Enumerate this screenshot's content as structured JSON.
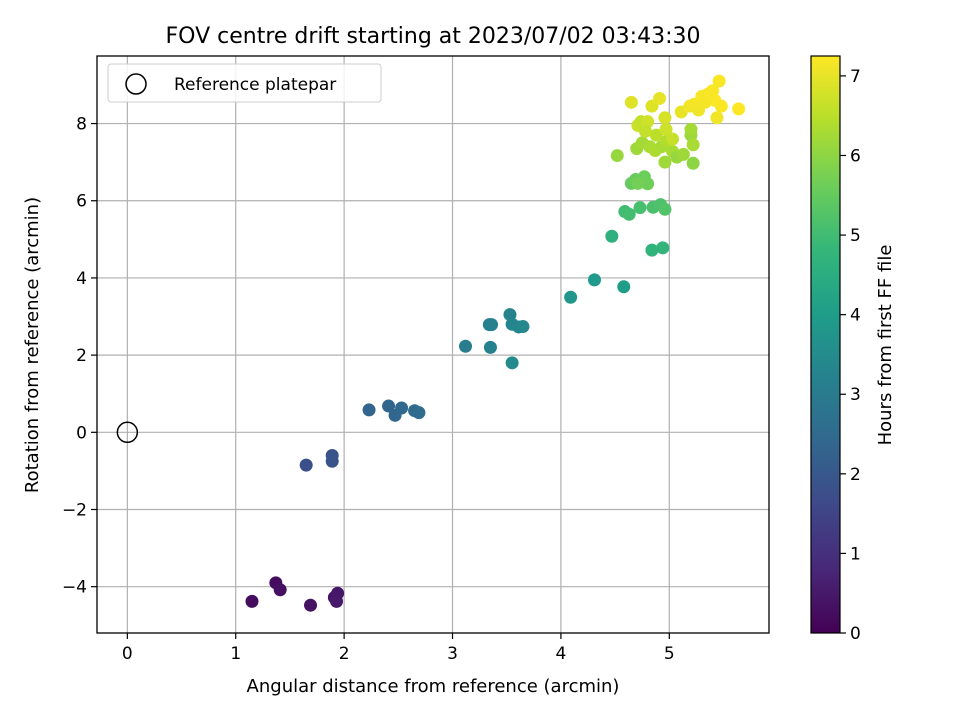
{
  "chart_data": {
    "type": "scatter",
    "title": "FOV centre drift starting at 2023/07/02 03:43:30",
    "xlabel": "Angular distance from reference (arcmin)",
    "ylabel": "Rotation from reference (arcmin)",
    "xlim": [
      -0.28,
      5.92
    ],
    "ylim": [
      -5.2,
      9.75
    ],
    "xticks": [
      0,
      1,
      2,
      3,
      4,
      5
    ],
    "xtick_labels": [
      "0",
      "1",
      "2",
      "3",
      "4",
      "5"
    ],
    "yticks": [
      -4,
      -2,
      0,
      2,
      4,
      6,
      8
    ],
    "ytick_labels": [
      "−4",
      "−2",
      "0",
      "2",
      "4",
      "6",
      "8"
    ],
    "grid": true,
    "legend": {
      "placement": "top-left",
      "entries": [
        "Reference platepar"
      ]
    },
    "colorbar": {
      "label": "Hours from first FF file",
      "colormap": "viridis",
      "range": [
        0,
        7.25
      ],
      "ticks": [
        0,
        1,
        2,
        3,
        4,
        5,
        6,
        7
      ],
      "tick_labels": [
        "0",
        "1",
        "2",
        "3",
        "4",
        "5",
        "6",
        "7"
      ],
      "colors": [
        "#440154",
        "#482878",
        "#3e4989",
        "#31688e",
        "#26828e",
        "#1f9e89",
        "#35b779",
        "#6ece58",
        "#b5de2b",
        "#fde725"
      ]
    },
    "reference_point": {
      "name": "Reference platepar",
      "x": 0,
      "y": 0
    },
    "points": [
      {
        "x": 1.15,
        "y": -4.38,
        "t": 0.2
      },
      {
        "x": 1.37,
        "y": -3.9,
        "t": 0.25
      },
      {
        "x": 1.41,
        "y": -4.08,
        "t": 0.3
      },
      {
        "x": 1.69,
        "y": -4.48,
        "t": 0.35
      },
      {
        "x": 1.91,
        "y": -4.28,
        "t": 0.4
      },
      {
        "x": 1.94,
        "y": -4.17,
        "t": 0.45
      },
      {
        "x": 1.93,
        "y": -4.38,
        "t": 0.5
      },
      {
        "x": 1.65,
        "y": -0.85,
        "t": 1.8
      },
      {
        "x": 1.89,
        "y": -0.6,
        "t": 1.85
      },
      {
        "x": 1.89,
        "y": -0.75,
        "t": 1.9
      },
      {
        "x": 2.23,
        "y": 0.58,
        "t": 2.3
      },
      {
        "x": 2.41,
        "y": 0.68,
        "t": 2.35
      },
      {
        "x": 2.47,
        "y": 0.44,
        "t": 2.4
      },
      {
        "x": 2.53,
        "y": 0.63,
        "t": 2.45
      },
      {
        "x": 2.65,
        "y": 0.56,
        "t": 2.5
      },
      {
        "x": 2.69,
        "y": 0.51,
        "t": 2.55
      },
      {
        "x": 3.12,
        "y": 2.23,
        "t": 3.05
      },
      {
        "x": 3.34,
        "y": 2.79,
        "t": 3.1
      },
      {
        "x": 3.36,
        "y": 2.79,
        "t": 3.15
      },
      {
        "x": 3.35,
        "y": 2.2,
        "t": 3.2
      },
      {
        "x": 3.53,
        "y": 3.05,
        "t": 3.25
      },
      {
        "x": 3.55,
        "y": 2.8,
        "t": 3.3
      },
      {
        "x": 3.61,
        "y": 2.73,
        "t": 3.35
      },
      {
        "x": 3.65,
        "y": 2.74,
        "t": 3.4
      },
      {
        "x": 3.55,
        "y": 1.8,
        "t": 3.45
      },
      {
        "x": 4.09,
        "y": 3.5,
        "t": 3.8
      },
      {
        "x": 4.31,
        "y": 3.95,
        "t": 3.9
      },
      {
        "x": 4.58,
        "y": 3.77,
        "t": 4.0
      },
      {
        "x": 4.47,
        "y": 5.08,
        "t": 4.6
      },
      {
        "x": 4.84,
        "y": 4.72,
        "t": 4.7
      },
      {
        "x": 4.94,
        "y": 4.78,
        "t": 4.75
      },
      {
        "x": 4.59,
        "y": 5.72,
        "t": 5.0
      },
      {
        "x": 4.63,
        "y": 5.65,
        "t": 5.05
      },
      {
        "x": 4.73,
        "y": 5.82,
        "t": 5.1
      },
      {
        "x": 4.85,
        "y": 5.83,
        "t": 5.15
      },
      {
        "x": 4.92,
        "y": 5.9,
        "t": 5.2
      },
      {
        "x": 4.96,
        "y": 5.78,
        "t": 5.25
      },
      {
        "x": 4.65,
        "y": 6.45,
        "t": 5.5
      },
      {
        "x": 4.69,
        "y": 6.55,
        "t": 5.55
      },
      {
        "x": 4.77,
        "y": 6.62,
        "t": 5.6
      },
      {
        "x": 4.8,
        "y": 6.44,
        "t": 5.65
      },
      {
        "x": 4.71,
        "y": 6.45,
        "t": 5.7
      },
      {
        "x": 4.52,
        "y": 7.17,
        "t": 6.1
      },
      {
        "x": 4.7,
        "y": 7.35,
        "t": 6.2
      },
      {
        "x": 4.75,
        "y": 7.5,
        "t": 6.25
      },
      {
        "x": 4.82,
        "y": 7.4,
        "t": 6.3
      },
      {
        "x": 4.87,
        "y": 7.3,
        "t": 6.35
      },
      {
        "x": 4.93,
        "y": 7.4,
        "t": 6.3
      },
      {
        "x": 4.96,
        "y": 7.0,
        "t": 6.2
      },
      {
        "x": 5.03,
        "y": 7.28,
        "t": 6.3
      },
      {
        "x": 5.07,
        "y": 7.13,
        "t": 6.1
      },
      {
        "x": 5.13,
        "y": 7.2,
        "t": 6.2
      },
      {
        "x": 5.2,
        "y": 7.7,
        "t": 6.15
      },
      {
        "x": 5.2,
        "y": 7.85,
        "t": 6.25
      },
      {
        "x": 5.22,
        "y": 7.45,
        "t": 6.3
      },
      {
        "x": 5.22,
        "y": 6.97,
        "t": 6.0
      },
      {
        "x": 4.98,
        "y": 7.55,
        "t": 6.4
      },
      {
        "x": 4.88,
        "y": 7.7,
        "t": 6.5
      },
      {
        "x": 4.65,
        "y": 8.55,
        "t": 6.9
      },
      {
        "x": 4.71,
        "y": 7.95,
        "t": 6.7
      },
      {
        "x": 4.74,
        "y": 8.05,
        "t": 6.6
      },
      {
        "x": 4.8,
        "y": 8.05,
        "t": 6.75
      },
      {
        "x": 4.84,
        "y": 8.45,
        "t": 6.9
      },
      {
        "x": 4.91,
        "y": 8.65,
        "t": 7.0
      },
      {
        "x": 4.96,
        "y": 8.15,
        "t": 6.8
      },
      {
        "x": 4.97,
        "y": 7.85,
        "t": 6.7
      },
      {
        "x": 5.03,
        "y": 7.6,
        "t": 6.65
      },
      {
        "x": 4.78,
        "y": 7.8,
        "t": 6.6
      },
      {
        "x": 5.11,
        "y": 8.3,
        "t": 7.0
      },
      {
        "x": 5.19,
        "y": 8.45,
        "t": 7.1
      },
      {
        "x": 5.23,
        "y": 8.5,
        "t": 7.15
      },
      {
        "x": 5.27,
        "y": 8.35,
        "t": 7.1
      },
      {
        "x": 5.3,
        "y": 8.7,
        "t": 7.2
      },
      {
        "x": 5.35,
        "y": 8.75,
        "t": 7.15
      },
      {
        "x": 5.4,
        "y": 8.85,
        "t": 7.2
      },
      {
        "x": 5.42,
        "y": 8.6,
        "t": 7.25
      },
      {
        "x": 5.46,
        "y": 9.1,
        "t": 7.2
      },
      {
        "x": 5.44,
        "y": 8.15,
        "t": 7.1
      },
      {
        "x": 5.48,
        "y": 8.45,
        "t": 7.2
      },
      {
        "x": 5.64,
        "y": 8.38,
        "t": 7.25
      },
      {
        "x": 5.33,
        "y": 8.55,
        "t": 7.15
      },
      {
        "x": 5.38,
        "y": 8.8,
        "t": 7.2
      }
    ]
  }
}
